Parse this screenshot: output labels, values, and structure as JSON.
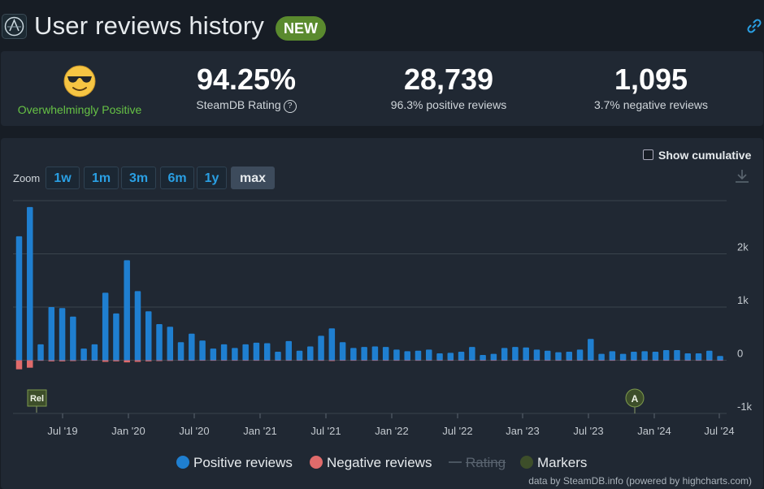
{
  "header": {
    "title": "User reviews history",
    "badge": "NEW"
  },
  "stats": {
    "verdict": "Overwhelmingly Positive",
    "rating_value": "94.25%",
    "rating_label": "SteamDB Rating",
    "positive_value": "28,739",
    "positive_label": "96.3% positive reviews",
    "negative_value": "1,095",
    "negative_label": "3.7% negative reviews"
  },
  "controls": {
    "cumulative_label": "Show cumulative",
    "zoom_label": "Zoom",
    "zoom_options": [
      "1w",
      "1m",
      "3m",
      "6m",
      "1y",
      "max"
    ],
    "zoom_active": "max"
  },
  "legend": {
    "positive": "Positive reviews",
    "negative": "Negative reviews",
    "rating": "Rating",
    "markers": "Markers"
  },
  "credit": "data by SteamDB.info (powered by highcharts.com)",
  "colors": {
    "positive": "#1f7fd0",
    "negative": "#e06b6b",
    "marker": "#3d4e2a",
    "accent": "#2a9fe3",
    "verdict": "#66c245"
  },
  "chart_data": {
    "type": "bar",
    "x_ticks": [
      "Jul '19",
      "Jan '20",
      "Jul '20",
      "Jan '21",
      "Jul '21",
      "Jan '22",
      "Jul '22",
      "Jan '23",
      "Jul '23",
      "Jan '24",
      "Jul '24"
    ],
    "y_ticks": [
      "2k",
      "1k",
      "0",
      "-1k"
    ],
    "ylim": [
      -1000,
      3000
    ],
    "grid": true,
    "legend_position": "bottom",
    "series": [
      {
        "name": "Positive reviews",
        "values": [
          2330,
          2880,
          300,
          1000,
          980,
          820,
          220,
          300,
          1270,
          880,
          1880,
          1300,
          920,
          680,
          630,
          340,
          500,
          370,
          220,
          300,
          230,
          300,
          330,
          320,
          160,
          360,
          180,
          260,
          460,
          600,
          340,
          230,
          250,
          260,
          250,
          200,
          170,
          180,
          200,
          130,
          140,
          160,
          250,
          100,
          120,
          230,
          250,
          240,
          200,
          180,
          150,
          160,
          200,
          400,
          120,
          170,
          120,
          160,
          170,
          160,
          190,
          190,
          130,
          130,
          180,
          80
        ]
      },
      {
        "name": "Negative reviews",
        "values": [
          170,
          140,
          10,
          20,
          20,
          15,
          5,
          5,
          30,
          20,
          40,
          30,
          20,
          15,
          12,
          8,
          10,
          8,
          5,
          6,
          5,
          6,
          7,
          7,
          4,
          8,
          4,
          6,
          10,
          14,
          8,
          5,
          6,
          6,
          6,
          5,
          4,
          4,
          5,
          3,
          3,
          4,
          6,
          2,
          3,
          5,
          6,
          6,
          5,
          4,
          4,
          4,
          5,
          9,
          3,
          4,
          3,
          4,
          4,
          4,
          4,
          4,
          3,
          3,
          4,
          2
        ]
      }
    ],
    "markers": [
      "Rel",
      "A"
    ]
  }
}
